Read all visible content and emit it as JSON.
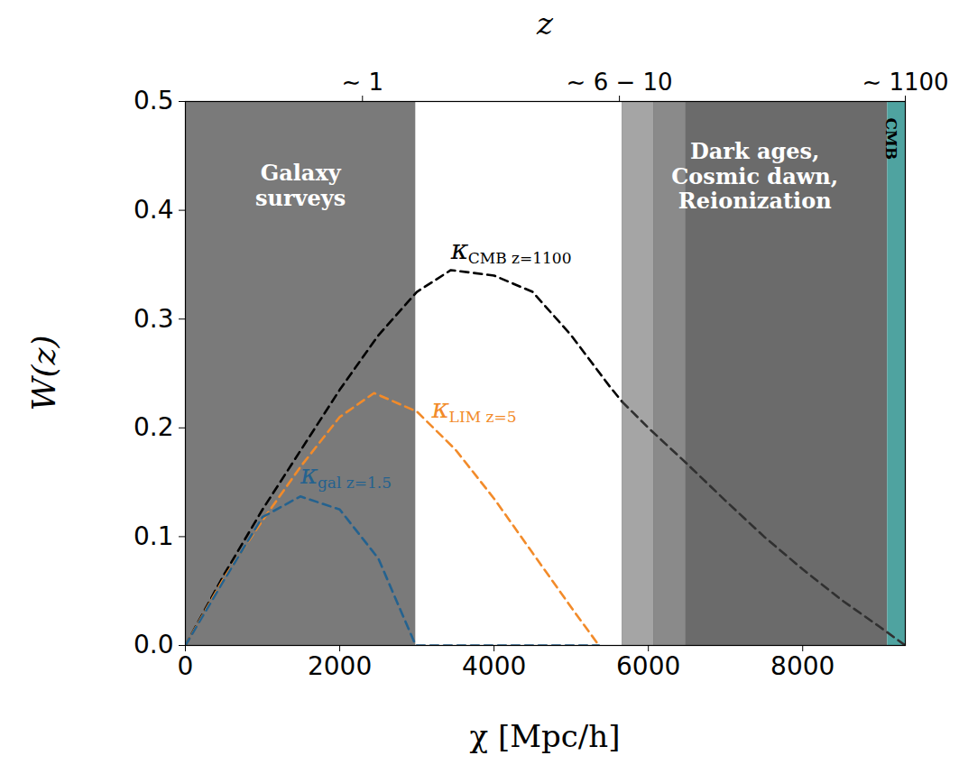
{
  "chart_data": {
    "type": "line",
    "x_label": "χ [Mpc/h]",
    "y_label": "W(z)",
    "xlim": [
      0,
      9330
    ],
    "xticks": [
      0,
      2000,
      4000,
      6000,
      8000
    ],
    "ylim": [
      0,
      0.5
    ],
    "yticks": [
      {
        "value": 0,
        "label": "0.0"
      },
      {
        "value": 0.1,
        "label": "0.1"
      },
      {
        "value": 0.2,
        "label": "0.2"
      },
      {
        "value": 0.3,
        "label": "0.3"
      },
      {
        "value": 0.4,
        "label": "0.4"
      },
      {
        "value": 0.5,
        "label": "0.5"
      }
    ],
    "top_axis": {
      "label": "z",
      "ticks": [
        {
          "value": 2295,
          "label": "∼ 1"
        },
        {
          "value": 5625,
          "label": "∼ 6 − 10"
        },
        {
          "value": 9330,
          "label": "∼ 1100"
        }
      ]
    },
    "grid": false,
    "regions": [
      {
        "label": "Galaxy\nsurveys",
        "x0": 0,
        "x1": 2985,
        "color": "#7a7a7a"
      },
      {
        "label": "Dark ages,\nCosmic dawn,\nReionization",
        "x0": 5660,
        "x1": 9100,
        "color": "#6b6b6b"
      },
      {
        "label": "CMB",
        "x0": 9100,
        "x1": 9330,
        "color": "#4fa3a0"
      }
    ],
    "series": [
      {
        "name": "κ",
        "subscript": "CMB z=1100",
        "color": "#000000",
        "line_style": "dashed",
        "x": [
          0,
          500,
          1000,
          1500,
          2000,
          2500,
          3000,
          3440,
          4000,
          4500,
          5000,
          5500,
          5660,
          6000,
          6500,
          7000,
          7500,
          8000,
          8500,
          9000,
          9330
        ],
        "values": [
          0,
          0.065,
          0.125,
          0.18,
          0.235,
          0.285,
          0.325,
          0.345,
          0.34,
          0.325,
          0.285,
          0.238,
          0.224,
          0.2,
          0.167,
          0.133,
          0.1,
          0.07,
          0.042,
          0.017,
          0
        ]
      },
      {
        "name": "κ",
        "subscript": "LIM z=5",
        "color": "#f28b2a",
        "line_style": "dashed",
        "x": [
          0,
          500,
          1000,
          1500,
          2000,
          2445,
          3000,
          3500,
          4000,
          4500,
          5000,
          5360
        ],
        "values": [
          0,
          0.062,
          0.115,
          0.165,
          0.21,
          0.232,
          0.215,
          0.18,
          0.135,
          0.085,
          0.035,
          0
        ]
      },
      {
        "name": "κ",
        "subscript": "gal z=1.5",
        "color": "#24628f",
        "line_style": "dashed",
        "x": [
          0,
          500,
          1000,
          1490,
          2000,
          2500,
          2985,
          5360
        ],
        "values": [
          0,
          0.06,
          0.118,
          0.137,
          0.125,
          0.08,
          0,
          0
        ]
      }
    ]
  }
}
